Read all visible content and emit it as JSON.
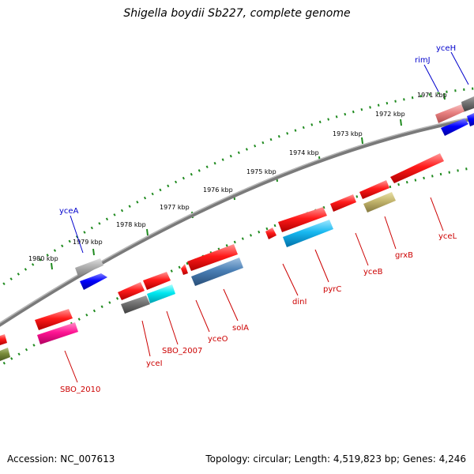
{
  "title": "Shigella boydii Sb227, complete genome",
  "footer": {
    "accession": "Accession: NC_007613",
    "summary": "Topology: circular; Length: 4,519,823 bp; Genes: 4,246"
  },
  "colors": {
    "backbone": "#7a7a7a",
    "tick_track": "#1e8a1e",
    "label_red": "#cc0000",
    "label_blue": "#0000cc"
  },
  "scale_labels": [
    "1971 kbp",
    "1972 kbp",
    "1973 kbp",
    "1974 kbp",
    "1975 kbp",
    "1976 kbp",
    "1977 kbp",
    "1978 kbp",
    "1979 kbp",
    "1980 kbp"
  ],
  "genes": [
    {
      "name": "yceH",
      "color": "#0000cc"
    },
    {
      "name": "rimJ",
      "color": "#0000cc"
    },
    {
      "name": "yceA",
      "color": "#0000cc"
    },
    {
      "name": "yceL",
      "color": "#cc0000"
    },
    {
      "name": "grxB",
      "color": "#cc0000"
    },
    {
      "name": "yceB",
      "color": "#cc0000"
    },
    {
      "name": "pyrC",
      "color": "#cc0000"
    },
    {
      "name": "dinI",
      "color": "#cc0000"
    },
    {
      "name": "solA",
      "color": "#cc0000"
    },
    {
      "name": "yceO",
      "color": "#cc0000"
    },
    {
      "name": "SBO_2007",
      "color": "#cc0000"
    },
    {
      "name": "yceI",
      "color": "#cc0000"
    },
    {
      "name": "SBO_2010",
      "color": "#cc0000"
    }
  ]
}
